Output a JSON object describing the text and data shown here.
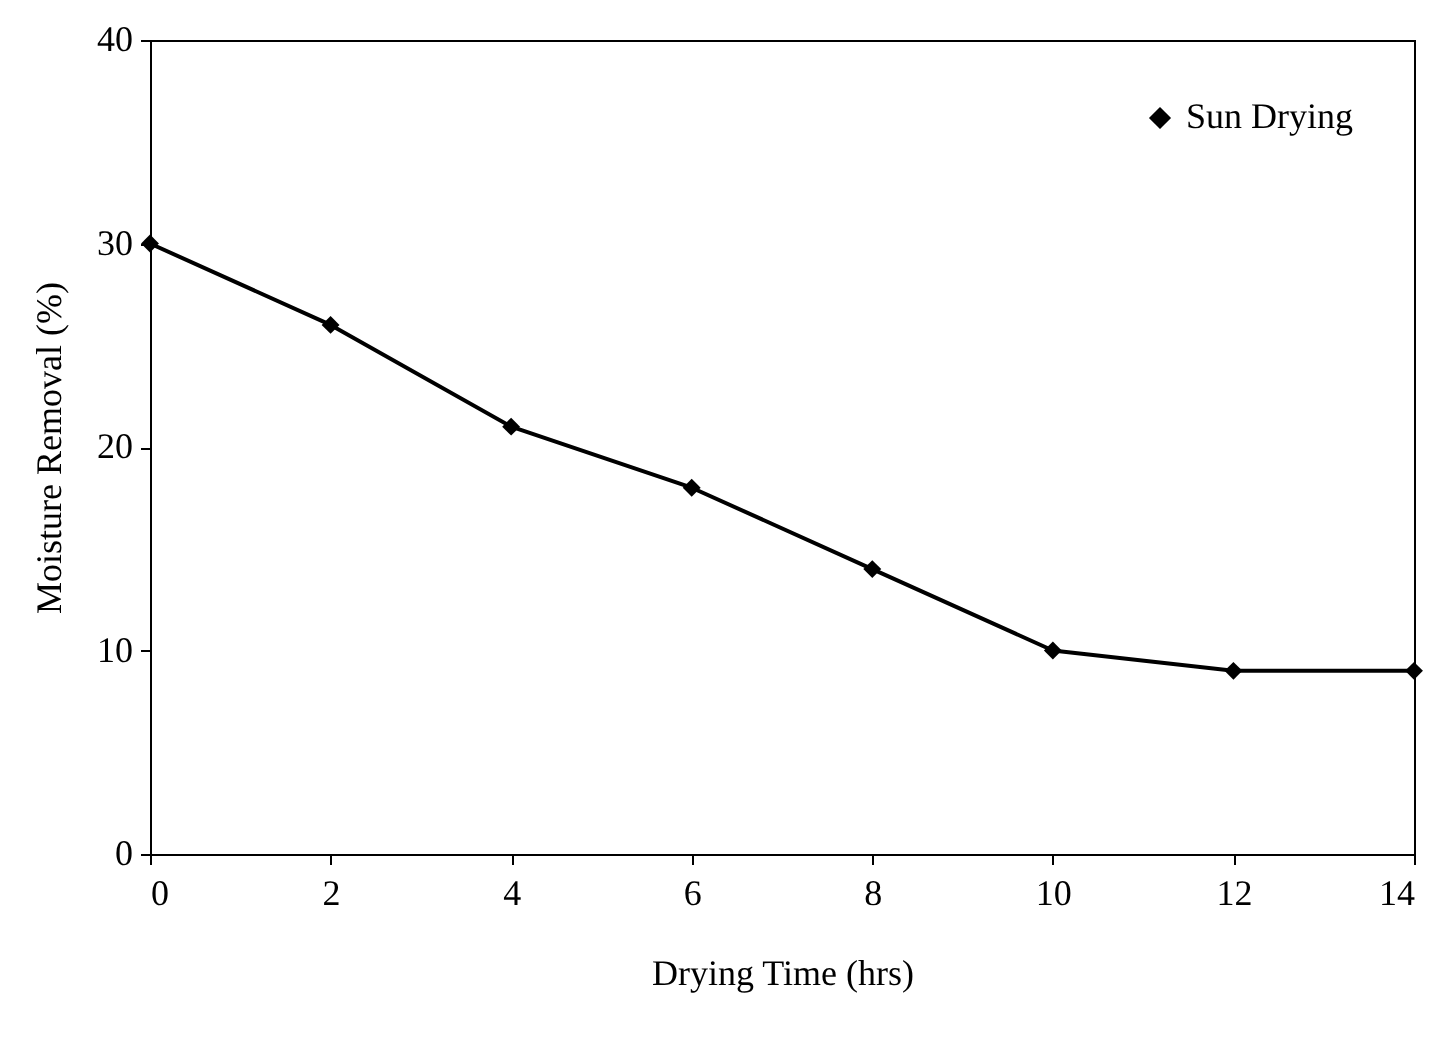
{
  "chart_data": {
    "type": "line",
    "xlabel": "Drying Time (hrs)",
    "ylabel": "Moisture Removal (%)",
    "x": [
      0,
      2,
      4,
      6,
      8,
      10,
      12,
      14
    ],
    "series": [
      {
        "name": "Sun Drying",
        "color": "#000000",
        "values": [
          30,
          26,
          21,
          18,
          14,
          10,
          9,
          9
        ]
      }
    ],
    "xlim": [
      0,
      14
    ],
    "xticks": [
      0,
      2,
      4,
      6,
      8,
      10,
      12,
      14
    ],
    "ylim": [
      0,
      40
    ],
    "yticks": [
      0,
      10,
      20,
      30,
      40
    ],
    "grid": false,
    "legend": "top right",
    "marker": "diamond",
    "line_style": "solid"
  }
}
